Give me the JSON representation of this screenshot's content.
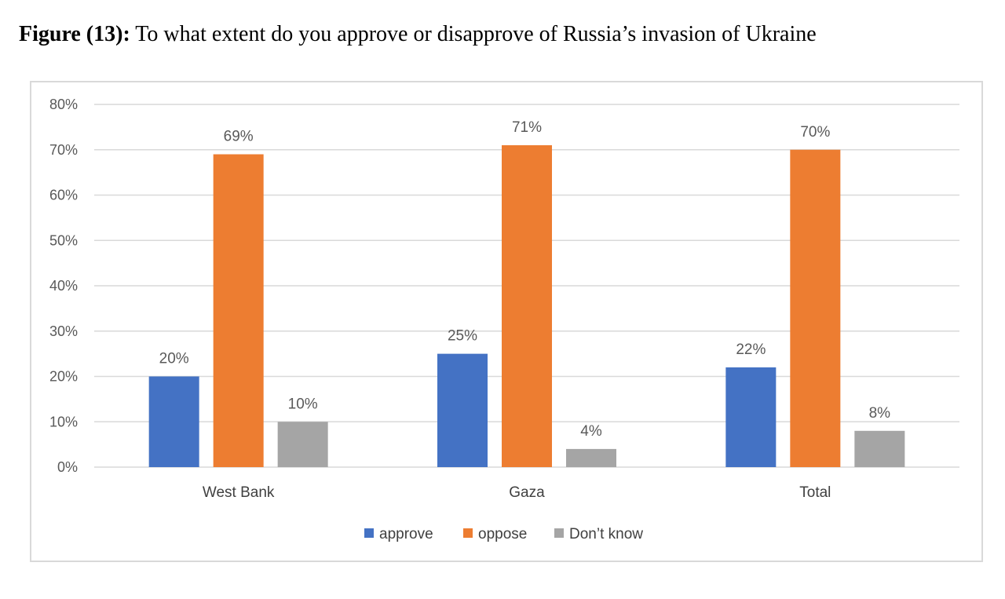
{
  "figure": {
    "prefix": "Figure (13):",
    "caption": " To what extent do you approve or disapprove of Russia’s invasion of Ukraine"
  },
  "colors": {
    "approve": "#4472c4",
    "oppose": "#ed7d31",
    "dont_know": "#a5a5a5",
    "grid": "#d9d9d9",
    "text": "#595959"
  },
  "chart_data": {
    "type": "bar",
    "title": "",
    "xlabel": "",
    "ylabel": "",
    "ylim": [
      0,
      80
    ],
    "yticks": [
      0,
      10,
      20,
      30,
      40,
      50,
      60,
      70,
      80
    ],
    "ytick_labels": [
      "0%",
      "10%",
      "20%",
      "30%",
      "40%",
      "50%",
      "60%",
      "70%",
      "80%"
    ],
    "grid": true,
    "legend_position": "bottom",
    "categories": [
      "West Bank",
      "Gaza",
      "Total"
    ],
    "series": [
      {
        "name": "approve",
        "values": [
          20,
          25,
          22
        ],
        "labels": [
          "20%",
          "25%",
          "22%"
        ]
      },
      {
        "name": "oppose",
        "values": [
          69,
          71,
          70
        ],
        "labels": [
          "69%",
          "71%",
          "70%"
        ]
      },
      {
        "name": "Don’t know",
        "values": [
          10,
          4,
          8
        ],
        "labels": [
          "10%",
          "4%",
          "8%"
        ]
      }
    ]
  }
}
